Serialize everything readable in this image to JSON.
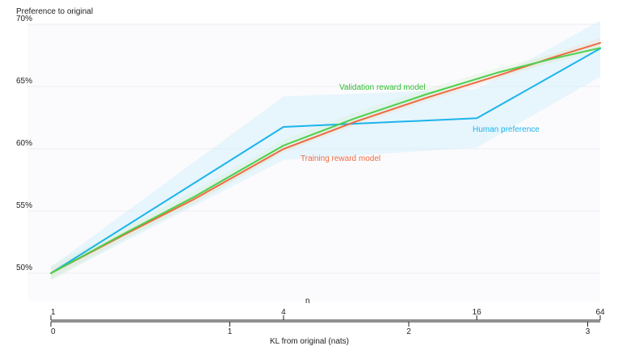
{
  "chart_data": {
    "type": "line",
    "ylabel": "Preference to original",
    "xlabel": "KL from original (nats)",
    "secondary_axis_label": "n",
    "yticks": [
      "70%",
      "65%",
      "60%",
      "55%",
      "50%"
    ],
    "ytick_values": [
      0.7,
      0.65,
      0.6,
      0.55,
      0.5
    ],
    "ylim": [
      0.47,
      0.7
    ],
    "xlim": [
      0,
      3.07
    ],
    "kl_ticks": [
      "0",
      "1",
      "2",
      "3"
    ],
    "kl_tick_values": [
      0,
      1,
      2,
      3
    ],
    "n_ticks": [
      "1",
      "4",
      "16",
      "64"
    ],
    "n_tick_kl": [
      0,
      1.3,
      2.38,
      3.07
    ],
    "grid": true,
    "series": [
      {
        "name": "Human preference",
        "color": "#1bb4ec",
        "x": [
          0,
          1.3,
          2.38,
          3.07
        ],
        "y": [
          0.5,
          0.6175,
          0.6245,
          0.6805
        ],
        "lower": [
          0.495,
          0.591,
          0.601,
          0.658
        ],
        "upper": [
          0.505,
          0.642,
          0.648,
          0.703
        ]
      },
      {
        "name": "Training reward model",
        "color": "#ee6a42",
        "x": [
          0,
          0.4,
          0.8,
          1.3,
          1.7,
          2.1,
          2.5,
          2.8,
          3.07
        ],
        "y": [
          0.5,
          0.5302,
          0.5595,
          0.5998,
          0.6216,
          0.641,
          0.6588,
          0.6731,
          0.685
        ],
        "lower": [
          0.496,
          0.527,
          0.556,
          0.597,
          0.619,
          0.638,
          0.656,
          0.67,
          0.681
        ],
        "upper": [
          0.504,
          0.533,
          0.563,
          0.603,
          0.624,
          0.644,
          0.662,
          0.676,
          0.689
        ]
      },
      {
        "name": "Validation reward model",
        "color": "#4bd04b",
        "x": [
          0,
          0.4,
          0.8,
          1.3,
          1.7,
          2.1,
          2.5,
          2.8,
          3.07
        ],
        "y": [
          0.5,
          0.5311,
          0.5613,
          0.6026,
          0.6245,
          0.6438,
          0.6613,
          0.6722,
          0.681
        ],
        "lower": [
          0.494,
          0.526,
          0.556,
          0.598,
          0.62,
          0.64,
          0.658,
          0.669,
          0.678
        ],
        "upper": [
          0.506,
          0.536,
          0.566,
          0.607,
          0.629,
          0.648,
          0.665,
          0.676,
          0.684
        ]
      }
    ]
  }
}
